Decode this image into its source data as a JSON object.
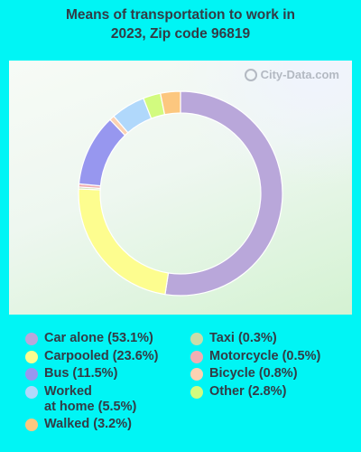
{
  "title_lines": [
    "Means of transportation to work in",
    "2023, Zip code 96819"
  ],
  "watermark": "City-Data.com",
  "chart_data": {
    "type": "pie",
    "title": "Means of transportation to work in 2023, Zip code 96819",
    "series": [
      {
        "name": "Car alone",
        "value": 53.1,
        "color": "#b9a7da",
        "label": "Car alone (53.1%)"
      },
      {
        "name": "Carpooled",
        "value": 23.6,
        "color": "#fdfd8f",
        "label": "Carpooled (23.6%)"
      },
      {
        "name": "Taxi",
        "value": 0.3,
        "color": "#c9dca9",
        "label": "Taxi (0.3%)"
      },
      {
        "name": "Motorcycle",
        "value": 0.5,
        "color": "#f0aeb3",
        "label": "Motorcycle (0.5%)"
      },
      {
        "name": "Bus",
        "value": 11.5,
        "color": "#9797ef",
        "label": "Bus (11.5%)"
      },
      {
        "name": "Bicycle",
        "value": 0.8,
        "color": "#fcd2b2",
        "label": "Bicycle (0.8%)"
      },
      {
        "name": "Worked at home",
        "value": 5.5,
        "color": "#b0d8fb",
        "label": "Worked\nat home (5.5%)"
      },
      {
        "name": "Other",
        "value": 2.8,
        "color": "#d2fb7f",
        "label": "Other (2.8%)"
      },
      {
        "name": "Walked",
        "value": 3.2,
        "color": "#fcc77f",
        "label": "Walked (3.2%)"
      }
    ],
    "legend_columns": [
      [
        "Car alone",
        "Carpooled",
        "Bus",
        "Worked at home",
        "Walked"
      ],
      [
        "Taxi",
        "Motorcycle",
        "Bicycle",
        "Other"
      ]
    ]
  }
}
